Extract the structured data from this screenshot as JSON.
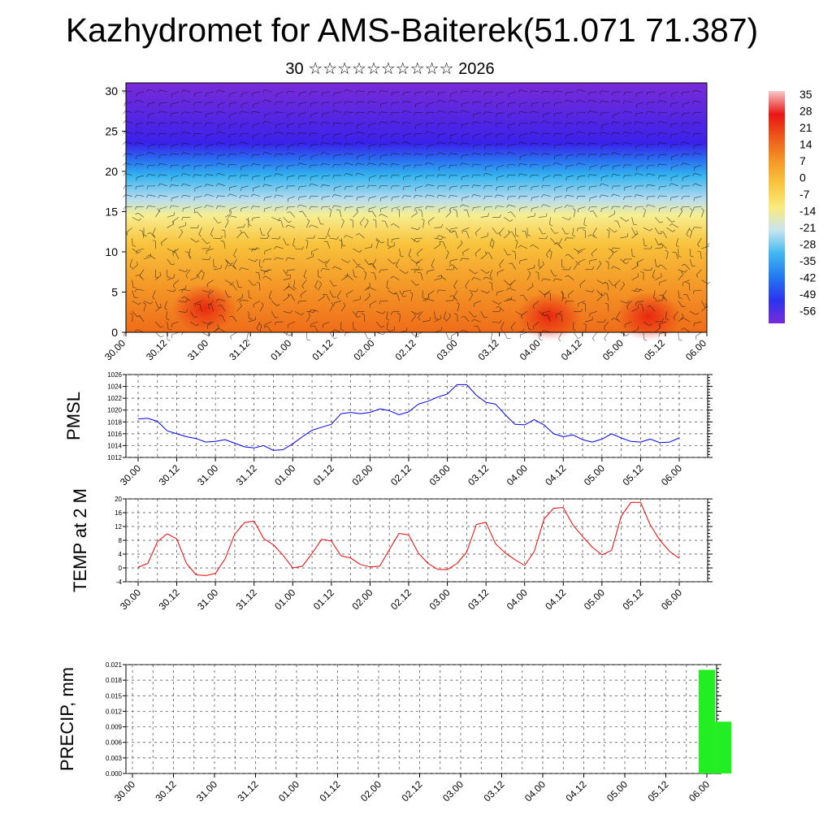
{
  "title": "Kazhydromet for AMS-Baiterek(51.071 71.387)",
  "subtitle": "30 ☆☆☆☆☆☆☆☆☆☆ 2026",
  "chart_data": [
    {
      "type": "heatmap",
      "name": "cross-section",
      "x_tick_labels": [
        "30.00",
        "30.12",
        "31.00",
        "31.12",
        "01.00",
        "01.12",
        "02.00",
        "02.12",
        "03.00",
        "03.12",
        "04.00",
        "04.12",
        "05.00",
        "05.12",
        "06.00"
      ],
      "y_ticks": [
        0,
        5,
        10,
        15,
        20,
        25,
        30
      ],
      "ylim": [
        0,
        31
      ],
      "colorbar_labels": [
        "35",
        "28",
        "21",
        "14",
        "7",
        "0",
        "-7",
        "-14",
        "-21",
        "-28",
        "-35",
        "-42",
        "-49",
        "-56"
      ],
      "color_bands": [
        "#7a2bd8",
        "#3a22ea",
        "#2a6cf0",
        "#33b3ef",
        "#b9ddef",
        "#f7ee90",
        "#f8c33c",
        "#f49a28",
        "#ef6c19"
      ],
      "warm_spots": [
        {
          "x": 1.9,
          "y": 3,
          "value": 12
        },
        {
          "x": 10.2,
          "y": 2,
          "value": 20
        },
        {
          "x": 12.6,
          "y": 2,
          "value": 24
        }
      ]
    },
    {
      "type": "line",
      "name": "PMSL",
      "ylabel": "PMSL",
      "color": "#0000ee",
      "ylim": [
        1012,
        1026
      ],
      "y_ticks": [
        1012,
        1014,
        1016,
        1018,
        1020,
        1022,
        1024,
        1026
      ],
      "x_tick_labels": [
        "30.00",
        "30.12",
        "31.00",
        "31.12",
        "01.00",
        "01.12",
        "02.00",
        "02.12",
        "03.00",
        "03.12",
        "04.00",
        "04.12",
        "05.00",
        "05.12",
        "06.00"
      ],
      "values": [
        1018.5,
        1018.6,
        1018.1,
        1016.5,
        1016.0,
        1015.5,
        1015.2,
        1014.6,
        1014.7,
        1015.0,
        1014.4,
        1013.8,
        1013.6,
        1014.0,
        1013.2,
        1013.3,
        1014.3,
        1015.5,
        1016.6,
        1017.1,
        1017.6,
        1019.4,
        1019.6,
        1019.4,
        1019.6,
        1020.2,
        1019.9,
        1019.2,
        1019.7,
        1021.0,
        1021.5,
        1022.2,
        1022.7,
        1024.3,
        1024.3,
        1022.5,
        1021.3,
        1021.0,
        1019.2,
        1017.6,
        1017.5,
        1018.4,
        1017.5,
        1016.0,
        1015.5,
        1015.8,
        1015.0,
        1014.6,
        1015.1,
        1016.0,
        1015.3,
        1014.7,
        1014.6,
        1015.1,
        1014.5,
        1014.6,
        1015.3
      ]
    },
    {
      "type": "line",
      "name": "TEMP at 2 M",
      "ylabel": "TEMP at 2 M",
      "color": "#ee0000",
      "ylim": [
        -4,
        20
      ],
      "y_ticks": [
        -4,
        0,
        4,
        8,
        12,
        16,
        20
      ],
      "x_tick_labels": [
        "30.00",
        "30.12",
        "31.00",
        "31.12",
        "01.00",
        "01.12",
        "02.00",
        "02.12",
        "03.00",
        "03.12",
        "04.00",
        "04.12",
        "05.00",
        "05.12",
        "06.00"
      ],
      "values": [
        0.2,
        1.3,
        7.6,
        9.9,
        8.4,
        1.3,
        -2.0,
        -2.2,
        -1.6,
        2.6,
        9.8,
        13.1,
        13.6,
        8.5,
        6.7,
        3.7,
        0.0,
        0.5,
        4.2,
        8.3,
        7.8,
        3.5,
        2.9,
        1.0,
        0.3,
        0.5,
        5.3,
        10.0,
        9.6,
        4.3,
        1.3,
        -0.4,
        -0.5,
        1.3,
        4.6,
        12.6,
        13.2,
        7.0,
        4.3,
        2.4,
        0.7,
        4.8,
        14.1,
        17.3,
        17.5,
        12.4,
        9.1,
        6.0,
        3.8,
        5.1,
        15.0,
        19.0,
        19.0,
        12.5,
        8.0,
        4.8,
        2.8
      ]
    },
    {
      "type": "bar",
      "name": "PRECIP, mm",
      "ylabel": "PRECIP, mm",
      "color": "#22ee22",
      "ylim": [
        0,
        0.021
      ],
      "y_tick_labels": [
        "0.000",
        "0.003",
        "0.006",
        "0.009",
        "0.012",
        "0.015",
        "0.018",
        "0.021"
      ],
      "x_tick_labels": [
        "30.00",
        "30.12",
        "31.00",
        "31.12",
        "01.00",
        "01.12",
        "02.00",
        "02.12",
        "03.00",
        "03.12",
        "04.00",
        "04.12",
        "05.00",
        "05.12",
        "06.00"
      ],
      "bars": [
        {
          "hour": 35,
          "value": 0.02
        },
        {
          "hour": 36,
          "value": 0.01
        }
      ]
    }
  ]
}
